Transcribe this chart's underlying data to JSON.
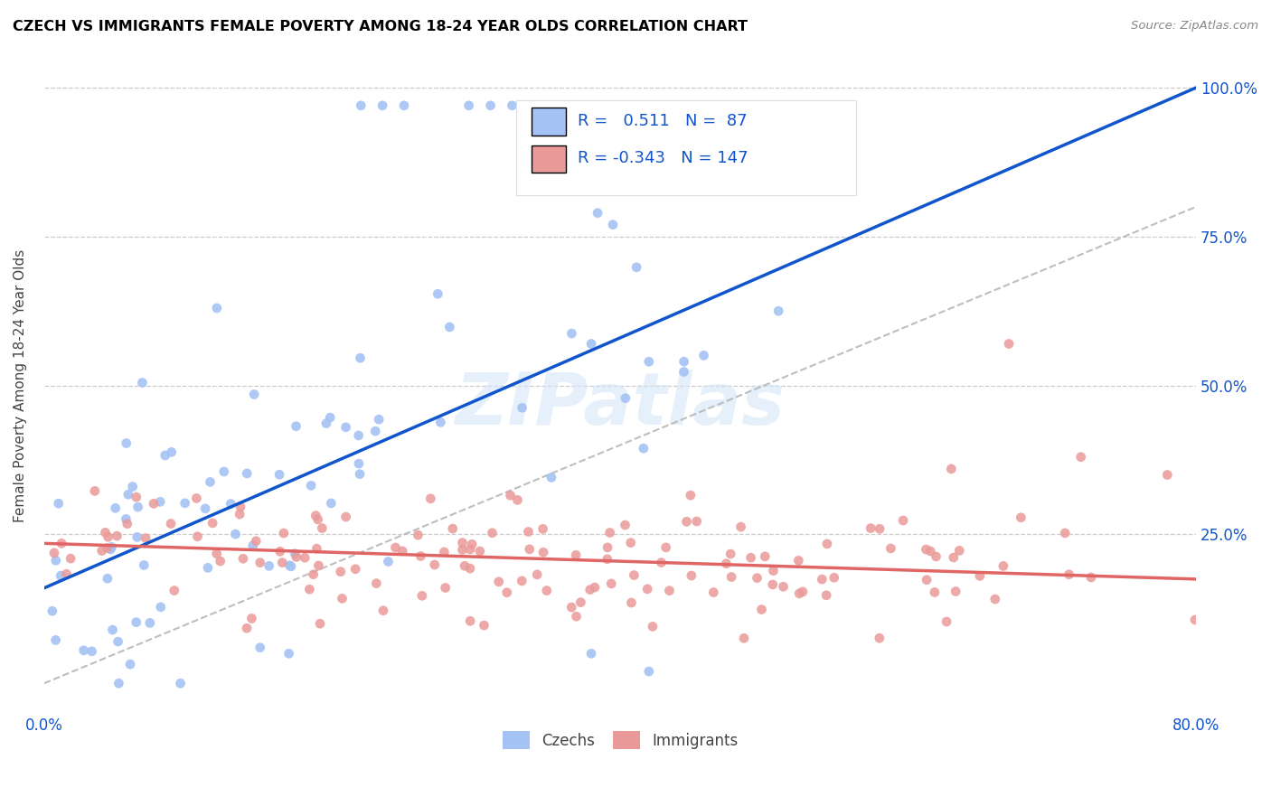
{
  "title": "CZECH VS IMMIGRANTS FEMALE POVERTY AMONG 18-24 YEAR OLDS CORRELATION CHART",
  "source": "Source: ZipAtlas.com",
  "ylabel": "Female Poverty Among 18-24 Year Olds",
  "xlim": [
    0.0,
    0.8
  ],
  "ylim": [
    -0.05,
    1.05
  ],
  "czech_color": "#a4c2f4",
  "immigrant_color": "#ea9999",
  "czech_line_color": "#1155cc",
  "immigrant_line_color": "#e06666",
  "diagonal_color": "#b7b7b7",
  "watermark_color": "#d0e4f7",
  "watermark": "ZIPatlas",
  "legend_R_czech": "0.511",
  "legend_N_czech": "87",
  "legend_R_immigrant": "-0.343",
  "legend_N_immigrant": "147",
  "legend_label_czech": "Czechs",
  "legend_label_immigrant": "Immigrants",
  "czech_line_x0": 0.0,
  "czech_line_y0": 0.16,
  "czech_line_x1": 0.8,
  "czech_line_y1": 1.0,
  "imm_line_x0": 0.0,
  "imm_line_y0": 0.235,
  "imm_line_x1": 0.8,
  "imm_line_y1": 0.175
}
